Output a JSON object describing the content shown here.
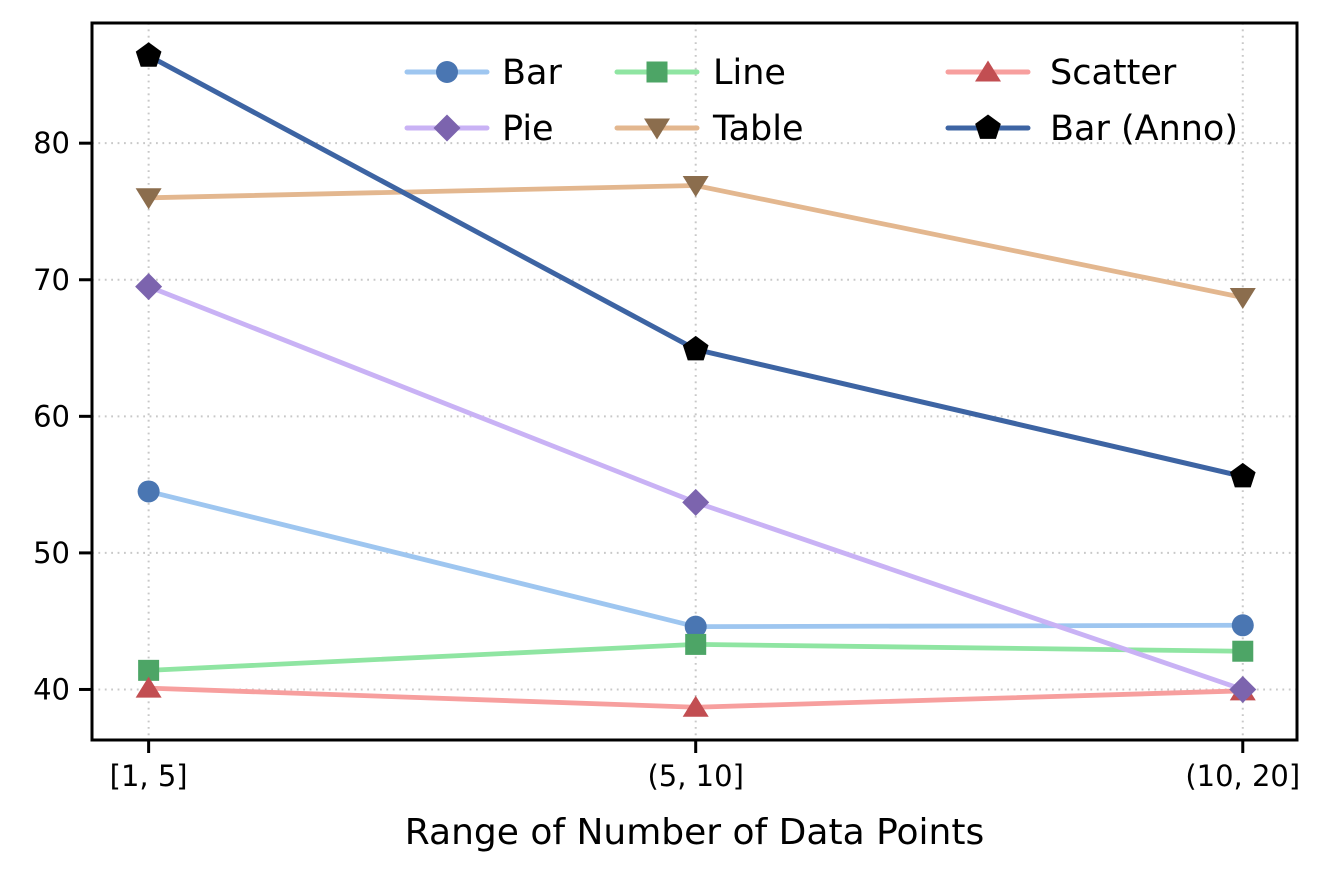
{
  "chart_data": {
    "type": "line",
    "title": "",
    "xlabel": "Range of Number of Data Points",
    "ylabel": "",
    "categories": [
      "[1, 5]",
      "(5, 10]",
      "(10, 20]"
    ],
    "yticks": [
      40,
      50,
      60,
      70,
      80
    ],
    "ylim": [
      36.3,
      88.8
    ],
    "grid": "dotted",
    "grid_color": "#c8c8c8",
    "axis_color": "#000000",
    "tick_label_color": "#000000",
    "legend": {
      "position": "upper center",
      "frame": false,
      "rows": [
        [
          "Bar",
          "Line",
          "Scatter"
        ],
        [
          "Pie",
          "Table",
          "Bar (Anno)"
        ]
      ]
    },
    "series": [
      {
        "name": "Bar",
        "marker": "circle",
        "line_color": "#9ec6f0",
        "marker_color": "#4a76b2",
        "values": [
          54.5,
          44.6,
          44.7
        ]
      },
      {
        "name": "Pie",
        "marker": "diamond",
        "line_color": "#c9b2f5",
        "marker_color": "#7c64ae",
        "values": [
          69.5,
          53.7,
          40.0
        ]
      },
      {
        "name": "Line",
        "marker": "square",
        "line_color": "#8fe5a2",
        "marker_color": "#4da566",
        "values": [
          41.4,
          43.3,
          42.8
        ]
      },
      {
        "name": "Table",
        "marker": "triangle-down",
        "line_color": "#e3b78f",
        "marker_color": "#8b6d4d",
        "values": [
          76.0,
          76.9,
          68.7
        ]
      },
      {
        "name": "Scatter",
        "marker": "triangle-up",
        "line_color": "#f79f9e",
        "marker_color": "#c24e52",
        "values": [
          40.1,
          38.7,
          39.9
        ]
      },
      {
        "name": "Bar (Anno)",
        "marker": "pentagon",
        "line_color": "#3d64a3",
        "marker_color": "#000000",
        "values": [
          86.4,
          64.9,
          55.6
        ]
      }
    ]
  }
}
